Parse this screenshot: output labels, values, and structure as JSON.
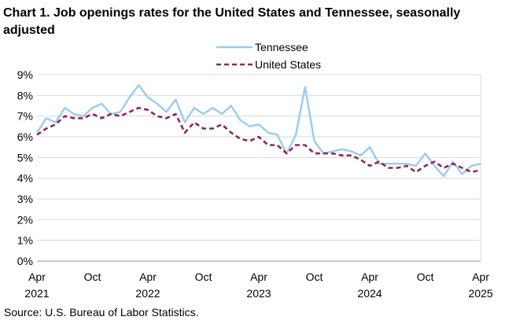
{
  "title": "Chart 1. Job openings rates for the United States and Tennessee, seasonally adjusted",
  "source": "Source: U.S. Bureau of Labor Statistics.",
  "chart_data": {
    "type": "line",
    "title": "Chart 1. Job openings rates for the United States and Tennessee, seasonally adjusted",
    "xlabel": "",
    "ylabel": "",
    "ylim": [
      0,
      9
    ],
    "yticks": [
      "0%",
      "1%",
      "2%",
      "3%",
      "4%",
      "5%",
      "6%",
      "7%",
      "8%",
      "9%"
    ],
    "grid": true,
    "legend_position": "top-center",
    "x_start": "Apr 2021",
    "x_end": "Apr 2025",
    "x_tick_labels": [
      {
        "month_index": 0,
        "month": "Apr",
        "year": "2021"
      },
      {
        "month_index": 6,
        "month": "Oct",
        "year": ""
      },
      {
        "month_index": 12,
        "month": "Apr",
        "year": "2022"
      },
      {
        "month_index": 18,
        "month": "Oct",
        "year": ""
      },
      {
        "month_index": 24,
        "month": "Apr",
        "year": "2023"
      },
      {
        "month_index": 30,
        "month": "Oct",
        "year": ""
      },
      {
        "month_index": 36,
        "month": "Apr",
        "year": "2024"
      },
      {
        "month_index": 42,
        "month": "Oct",
        "year": ""
      },
      {
        "month_index": 48,
        "month": "Apr",
        "year": "2025"
      }
    ],
    "series": [
      {
        "name": "Tennessee",
        "color": "#99ccee",
        "style": "solid",
        "values": [
          6.2,
          6.9,
          6.7,
          7.4,
          7.1,
          7.0,
          7.4,
          7.6,
          7.1,
          7.2,
          7.9,
          8.5,
          7.9,
          7.6,
          7.2,
          7.8,
          6.7,
          7.4,
          7.1,
          7.4,
          7.1,
          7.5,
          6.8,
          6.5,
          6.6,
          6.2,
          6.1,
          5.2,
          6.1,
          8.4,
          5.8,
          5.2,
          5.3,
          5.4,
          5.3,
          5.1,
          5.5,
          4.7,
          4.7,
          4.7,
          4.7,
          4.6,
          5.2,
          4.6,
          4.1,
          4.8,
          4.2,
          4.6,
          4.7
        ]
      },
      {
        "name": "United States",
        "color": "#8b2a52",
        "style": "dashed",
        "values": [
          6.1,
          6.4,
          6.6,
          7.0,
          6.9,
          6.9,
          7.1,
          6.9,
          7.1,
          7.0,
          7.2,
          7.4,
          7.3,
          7.0,
          6.9,
          7.1,
          6.2,
          6.7,
          6.4,
          6.4,
          6.6,
          6.2,
          5.9,
          5.8,
          6.0,
          5.6,
          5.6,
          5.2,
          5.6,
          5.6,
          5.2,
          5.2,
          5.2,
          5.1,
          5.1,
          4.9,
          4.6,
          4.8,
          4.5,
          4.5,
          4.6,
          4.3,
          4.6,
          4.8,
          4.5,
          4.7,
          4.5,
          4.3,
          4.4
        ]
      }
    ]
  }
}
